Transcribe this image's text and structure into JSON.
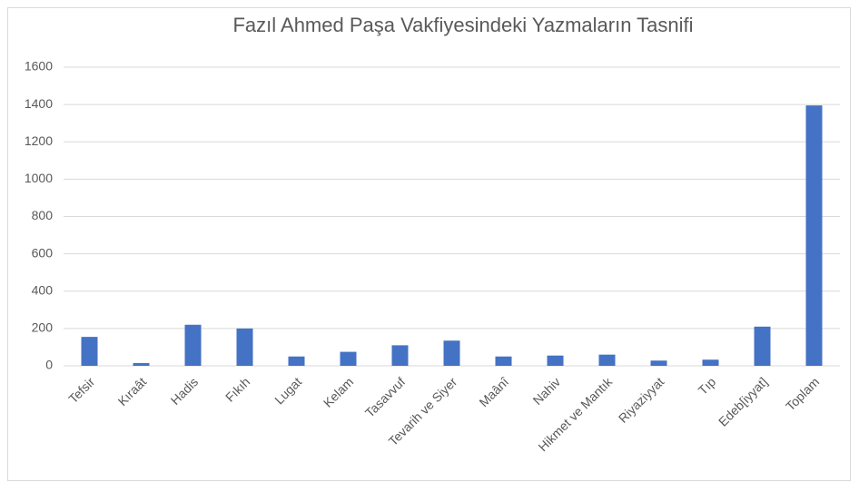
{
  "chart_data": {
    "type": "bar",
    "title": "Fazıl Ahmed Paşa Vakfiyesindeki Yazmaların Tasnifi",
    "categories": [
      "Tefsir",
      "Kıraât",
      "Hadis",
      "Fıkıh",
      "Lugat",
      "Kelam",
      "Tasavvuf",
      "Tevarih ve Siyer",
      "Maânî",
      "Nahiv",
      "Hikmet ve Mantık",
      "Riyaziyyat",
      "Tıp",
      "Edeb[iyyat]",
      "Toplam"
    ],
    "values": [
      155,
      15,
      220,
      200,
      50,
      75,
      110,
      135,
      50,
      55,
      60,
      28,
      33,
      210,
      1395
    ],
    "color": "#4472c4",
    "ylim": [
      0,
      1600
    ],
    "yticks": [
      0,
      200,
      400,
      600,
      800,
      1000,
      1200,
      1400,
      1600
    ],
    "grid": true
  }
}
